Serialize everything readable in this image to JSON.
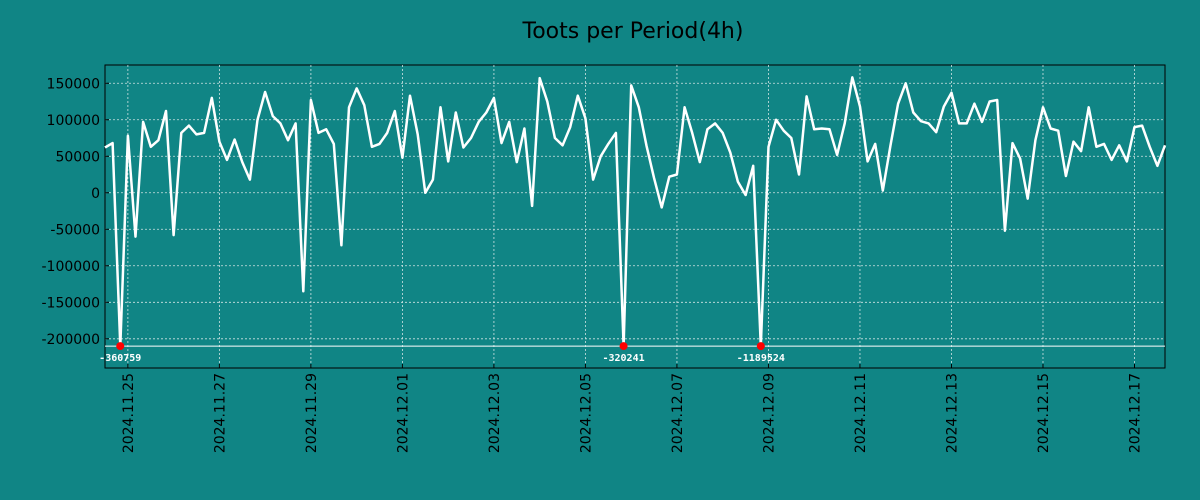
{
  "chart_data": {
    "type": "line",
    "title": "Toots per Period(4h)",
    "xlabel": "",
    "ylabel": "",
    "ylim": [
      -240000,
      175000
    ],
    "yticks": [
      -200000,
      -150000,
      -100000,
      -50000,
      0,
      50000,
      100000,
      150000
    ],
    "xtick_labels": [
      "2024.11.25",
      "2024.11.27",
      "2024.11.29",
      "2024.12.01",
      "2024.12.03",
      "2024.12.05",
      "2024.12.07",
      "2024.12.09",
      "2024.12.11",
      "2024.12.13",
      "2024.12.15",
      "2024.12.17"
    ],
    "x_start": "2024.11.24 12:00",
    "period_hours": 4,
    "grid": true,
    "line_color": "#ffffff",
    "floor_line_value": -210000,
    "series": [
      {
        "name": "toots",
        "values": [
          62000,
          68000,
          -210000,
          78000,
          -60000,
          97000,
          63000,
          72000,
          112000,
          -58000,
          82000,
          92000,
          80000,
          82000,
          130000,
          70000,
          45000,
          73000,
          42000,
          18000,
          100000,
          138000,
          105000,
          95000,
          72000,
          95000,
          -135000,
          127000,
          82000,
          87000,
          67000,
          -72000,
          117000,
          143000,
          120000,
          63000,
          67000,
          82000,
          112000,
          48000,
          133000,
          80000,
          0,
          18000,
          117000,
          43000,
          110000,
          62000,
          75000,
          97000,
          110000,
          130000,
          68000,
          97000,
          42000,
          88000,
          -18000,
          157000,
          125000,
          75000,
          65000,
          90000,
          133000,
          102000,
          18000,
          50000,
          67000,
          82000,
          -210000,
          147000,
          117000,
          65000,
          20000,
          -20000,
          22000,
          25000,
          117000,
          82000,
          42000,
          87000,
          95000,
          82000,
          55000,
          15000,
          -3000,
          37000,
          -210000,
          63000,
          100000,
          85000,
          75000,
          25000,
          132000,
          87000,
          88000,
          87000,
          52000,
          95000,
          158000,
          118000,
          43000,
          67000,
          3000,
          65000,
          122000,
          150000,
          110000,
          98000,
          95000,
          83000,
          118000,
          137000,
          95000,
          95000,
          122000,
          97000,
          125000,
          127000,
          -52000,
          68000,
          47000,
          -8000,
          72000,
          117000,
          88000,
          85000,
          23000,
          70000,
          57000,
          117000,
          63000,
          67000,
          45000,
          65000,
          43000,
          90000,
          92000,
          63000,
          37000,
          65000
        ]
      }
    ],
    "annotations": [
      {
        "index": 2,
        "label": "-360759",
        "marker_color": "#ff0000"
      },
      {
        "index": 68,
        "label": "-320241",
        "marker_color": "#ff0000"
      },
      {
        "index": 86,
        "label": "-1189524",
        "marker_color": "#ff0000"
      }
    ]
  }
}
